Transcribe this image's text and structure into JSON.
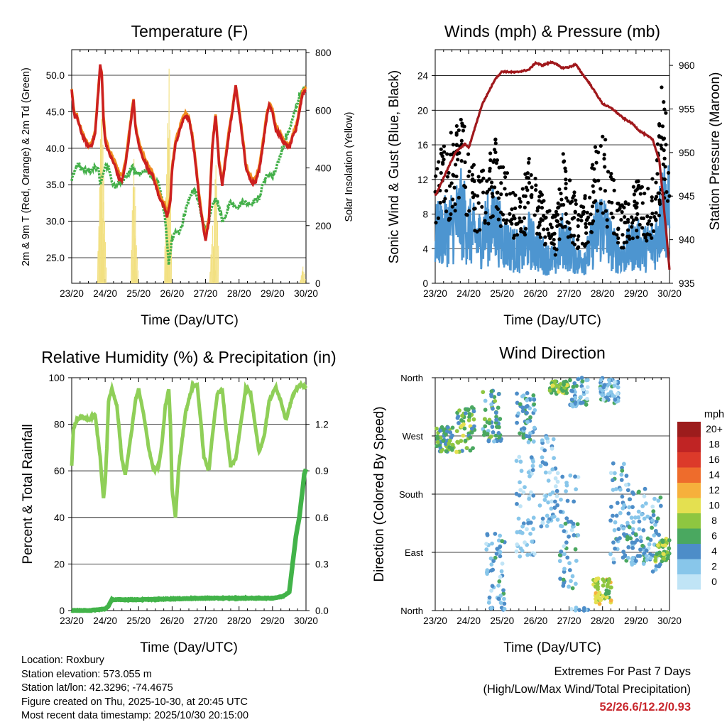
{
  "time_ticks": [
    "23/20",
    "24/20",
    "25/20",
    "26/20",
    "27/20",
    "28/20",
    "29/20",
    "30/20"
  ],
  "xlabel": "Time (Day/UTC)",
  "colors": {
    "temp2m": "#cc2020",
    "temp9m": "#f08c1e",
    "dewpoint": "#44b04a",
    "solar": "#f2e080",
    "gust": "#000000",
    "wind": "#4d95d0",
    "pressure": "#a0181c",
    "rh": "#8fcf58",
    "precip": "#42b349",
    "extremes": "#c8262c"
  },
  "chart_data": [
    {
      "id": "temperature",
      "type": "line",
      "title": "Temperature (F)",
      "xlabel": "Time (Day/UTC)",
      "ylabel": "2m & 9m T (Red, Orange) & 2m Td (Green)",
      "y2label": "Solar Insolation (Yellow)",
      "x": [
        0,
        0.05,
        0.1,
        0.15,
        0.2,
        0.3,
        0.4,
        0.5,
        0.6,
        0.7,
        0.8,
        0.85,
        0.9,
        0.95,
        1.0,
        1.1,
        1.2,
        1.3,
        1.4,
        1.5,
        1.6,
        1.7,
        1.8,
        1.85,
        1.9,
        2.0,
        2.1,
        2.2,
        2.3,
        2.4,
        2.5,
        2.6,
        2.7,
        2.8,
        2.85,
        2.9,
        2.95,
        3.0,
        3.1,
        3.2,
        3.3,
        3.4,
        3.5,
        3.6,
        3.7,
        3.8,
        3.9,
        4.0,
        4.1,
        4.2,
        4.3,
        4.4,
        4.5,
        4.6,
        4.7,
        4.8,
        4.9,
        5.0,
        5.1,
        5.2,
        5.3,
        5.4,
        5.5,
        5.6,
        5.7,
        5.8,
        5.9,
        6.0,
        6.1,
        6.2,
        6.3,
        6.4,
        6.5,
        6.6,
        6.7,
        6.8,
        6.9,
        7.0
      ],
      "ylim": [
        21.5,
        53.5
      ],
      "yticks": [
        "25.0",
        "30.0",
        "35.0",
        "40.0",
        "45.0",
        "50.0"
      ],
      "y2lim": [
        0,
        810
      ],
      "y2ticks": [
        "0",
        "200",
        "400",
        "600",
        "800"
      ],
      "series": [
        {
          "name": "2m T",
          "color": "#cc2020",
          "values": [
            48,
            45.5,
            44,
            44.5,
            43.5,
            42,
            41,
            40.2,
            40.5,
            42,
            48,
            51.5,
            50,
            44,
            41,
            39.5,
            38.5,
            37.5,
            36,
            35.5,
            37.5,
            41,
            45,
            46.5,
            43,
            40.5,
            39,
            38,
            37,
            36.5,
            35,
            33.5,
            32.5,
            31.5,
            30.5,
            31.5,
            33,
            37,
            40.5,
            42,
            43.5,
            44.5,
            44,
            41.5,
            38,
            33.5,
            30,
            27.5,
            30,
            40,
            44.5,
            38,
            35,
            38.5,
            42,
            45,
            48.5,
            45,
            41.5,
            37.5,
            36,
            35.3,
            35.5,
            37,
            40,
            43.5,
            46,
            45,
            42.5,
            42,
            41,
            40.5,
            40,
            41.5,
            42.5,
            45,
            47.5,
            48
          ]
        },
        {
          "name": "9m T",
          "color": "#f08c1e",
          "values": [
            48.3,
            45.8,
            44.3,
            44.8,
            43.8,
            42.3,
            41.3,
            40.5,
            40.8,
            42.3,
            48.5,
            51,
            50.3,
            44.5,
            41.5,
            40,
            39,
            38.2,
            36.8,
            36.2,
            38,
            41.5,
            45.3,
            46.8,
            43.3,
            41,
            39.5,
            38.5,
            37.5,
            37,
            35.5,
            34,
            33,
            32,
            31,
            32,
            33.5,
            37.5,
            41,
            42.5,
            44,
            44.8,
            44.3,
            42,
            38.5,
            34,
            30.5,
            28,
            30.5,
            40.5,
            44.8,
            38.5,
            35.5,
            39,
            42.5,
            45.5,
            48.8,
            45.5,
            42,
            38,
            36.5,
            35.8,
            36,
            37.5,
            40.5,
            44,
            46.2,
            45.3,
            43,
            42.4,
            41.4,
            40.9,
            40.4,
            41.9,
            42.9,
            45.2,
            47.8,
            48.3
          ]
        },
        {
          "name": "2m Td",
          "color": "#44b04a",
          "values": [
            35.5,
            36.5,
            37,
            37.5,
            37.8,
            37,
            37,
            36.8,
            37,
            37.5,
            37,
            35,
            36,
            36.5,
            37.5,
            37.5,
            35.5,
            34.5,
            35.5,
            35.5,
            36,
            36.5,
            37.5,
            37,
            36.5,
            36.5,
            36.8,
            37,
            36.5,
            36,
            35.5,
            35,
            33,
            30,
            27,
            24,
            26,
            27.5,
            28.5,
            28.5,
            29.5,
            31.5,
            33,
            34,
            34,
            32.5,
            30,
            29,
            30,
            32,
            33,
            32,
            30,
            30.5,
            32.5,
            32.5,
            32,
            32,
            32.8,
            32.5,
            32.5,
            32.5,
            33,
            33,
            35,
            36,
            36.5,
            36,
            37,
            38.5,
            40,
            41.5,
            42.5,
            44,
            45.5,
            47,
            48,
            48.5
          ]
        },
        {
          "name": "Solar Insolation",
          "axis": "y2",
          "color": "#f2e080",
          "values": [
            0,
            0,
            0,
            0,
            0,
            0,
            0,
            0,
            0,
            0,
            0,
            500,
            800,
            300,
            0,
            0,
            0,
            0,
            0,
            0,
            0,
            0,
            0,
            550,
            220,
            0,
            0,
            0,
            0,
            0,
            0,
            0,
            0,
            0,
            600,
            780,
            0,
            0,
            0,
            0,
            0,
            0,
            0,
            0,
            0,
            0,
            0,
            0,
            0,
            220,
            580,
            0,
            0,
            0,
            0,
            0,
            0,
            0,
            0,
            0,
            0,
            0,
            0,
            0,
            0,
            0,
            0,
            0,
            0,
            0,
            0,
            0,
            0,
            0,
            0,
            0,
            70,
            0
          ]
        }
      ]
    },
    {
      "id": "winds",
      "type": "scatter",
      "title": "Winds (mph) & Pressure (mb)",
      "xlabel": "Time (Day/UTC)",
      "ylabel": "Sonic Wind & Gust (Blue, Black)",
      "y2label": "Station Pressure (Maroon)",
      "ylim": [
        0,
        27
      ],
      "yticks": [
        "0",
        "4",
        "8",
        "12",
        "16",
        "20",
        "24"
      ],
      "y2lim": [
        935,
        961.8
      ],
      "y2ticks": [
        "935",
        "940",
        "945",
        "950",
        "955",
        "960"
      ],
      "wind_profile_x": [
        0,
        0.3,
        0.6,
        0.8,
        1.0,
        1.3,
        1.5,
        1.8,
        2.0,
        2.3,
        2.6,
        2.8,
        3.0,
        3.3,
        3.6,
        3.8,
        4.0,
        4.3,
        4.6,
        4.8,
        5.0,
        5.3,
        5.6,
        5.8,
        6.0,
        6.3,
        6.6,
        6.8,
        7.0
      ],
      "wind_profile_mean": [
        5.5,
        6,
        7,
        8,
        6,
        5,
        6,
        7,
        5,
        4,
        3.5,
        5,
        4,
        3,
        2.5,
        5,
        4,
        2.5,
        3.5,
        6,
        7,
        4,
        3,
        4,
        4.5,
        4,
        5,
        9,
        8
      ],
      "gust_profile_mean": [
        10,
        11,
        12,
        13,
        10,
        8,
        9,
        11,
        9,
        8,
        7,
        10,
        8,
        6,
        5,
        10,
        8,
        6,
        7,
        11,
        12,
        8,
        6,
        7,
        8,
        7,
        9,
        16,
        13
      ],
      "series": [
        {
          "name": "Station Pressure",
          "axis": "y2",
          "color": "#a0181c",
          "x": [
            0,
            0.3,
            0.6,
            0.9,
            1.0,
            1.2,
            1.4,
            1.6,
            1.8,
            2.0,
            2.4,
            2.8,
            3.0,
            3.2,
            3.5,
            3.8,
            4.0,
            4.2,
            4.4,
            4.6,
            4.8,
            5.0,
            5.3,
            5.6,
            5.9,
            6.1,
            6.3,
            6.5,
            6.7,
            6.8,
            6.9,
            7.0
          ],
          "values": [
            945,
            947.5,
            950,
            951,
            950.5,
            953,
            955.5,
            957,
            958.5,
            959.3,
            959.2,
            959.5,
            960.3,
            960,
            960.4,
            959.7,
            959.8,
            960.1,
            959,
            958,
            956.8,
            955.6,
            955,
            954,
            953.3,
            952.5,
            952,
            951.5,
            949,
            945,
            941,
            936.5
          ]
        }
      ]
    },
    {
      "id": "humidity",
      "type": "line",
      "title": "Relative Humidity (%) & Precipitation (in)",
      "xlabel": "Time (Day/UTC)",
      "ylabel": "Percent & Total Rainfall",
      "ylim": [
        0,
        100
      ],
      "yticks": [
        "0",
        "20",
        "40",
        "60",
        "80",
        "100"
      ],
      "y2lim": [
        0,
        1.5
      ],
      "y2ticks": [
        "0.0",
        "0.3",
        "0.6",
        "0.9",
        "1.2"
      ],
      "series": [
        {
          "name": "Relative Humidity",
          "color": "#8fcf58",
          "x": [
            0,
            0.05,
            0.15,
            0.3,
            0.5,
            0.7,
            0.85,
            0.95,
            1.0,
            1.05,
            1.1,
            1.2,
            1.35,
            1.5,
            1.6,
            1.8,
            1.9,
            2.0,
            2.15,
            2.3,
            2.45,
            2.6,
            2.7,
            2.8,
            2.9,
            2.95,
            3.0,
            3.1,
            3.2,
            3.4,
            3.6,
            3.75,
            3.85,
            3.95,
            4.1,
            4.2,
            4.35,
            4.5,
            4.6,
            4.75,
            4.9,
            5.1,
            5.2,
            5.35,
            5.5,
            5.6,
            5.75,
            5.9,
            6.1,
            6.25,
            6.4,
            6.6,
            6.8,
            7.0
          ],
          "values": [
            62,
            78,
            82,
            83,
            82,
            84,
            66,
            48,
            55,
            70,
            90,
            95,
            88,
            65,
            58,
            78,
            90,
            95,
            84,
            70,
            60,
            62,
            72,
            88,
            95,
            80,
            52,
            40,
            62,
            85,
            96,
            97,
            82,
            66,
            60,
            75,
            93,
            95,
            80,
            62,
            65,
            85,
            96,
            93,
            78,
            68,
            75,
            90,
            96,
            90,
            82,
            92,
            97,
            96
          ]
        },
        {
          "name": "Total Precipitation",
          "axis": "y2",
          "color": "#42b349",
          "x": [
            0,
            0.5,
            1.0,
            1.1,
            1.2,
            2.0,
            3.0,
            4.0,
            5.0,
            6.0,
            6.3,
            6.5,
            6.6,
            6.7,
            6.8,
            6.9,
            6.95,
            7.0
          ],
          "values": [
            0,
            0,
            0.01,
            0.03,
            0.07,
            0.07,
            0.075,
            0.08,
            0.08,
            0.08,
            0.09,
            0.12,
            0.3,
            0.48,
            0.6,
            0.78,
            0.88,
            0.91
          ]
        }
      ]
    },
    {
      "id": "direction",
      "type": "scatter",
      "title": "Wind Direction",
      "xlabel": "Time (Day/UTC)",
      "ylabel": "Direction (Colored By Speed)",
      "ylim": [
        0,
        360
      ],
      "yticks": [
        "North",
        "East",
        "South",
        "West",
        "North"
      ],
      "legend_title": "mph",
      "legend_labels": [
        "0",
        "2",
        "4",
        "6",
        "8",
        "10",
        "12",
        "14",
        "16",
        "18",
        "20+"
      ],
      "legend_colors": [
        "#c0e4f6",
        "#88c6ea",
        "#4d8dc8",
        "#4aa860",
        "#8ec640",
        "#e4e050",
        "#f6b03c",
        "#ee6c2c",
        "#dc3a2a",
        "#c02424",
        "#9c1c1c"
      ],
      "clusters": [
        {
          "x": 0.3,
          "deg": 265,
          "spread": 20,
          "spd": 6
        },
        {
          "x": 0.9,
          "deg": 280,
          "spread": 35,
          "spd": 7
        },
        {
          "x": 1.7,
          "deg": 300,
          "spread": 40,
          "spd": 5
        },
        {
          "x": 2.7,
          "deg": 300,
          "spread": 40,
          "spd": 4
        },
        {
          "x": 1.8,
          "deg": 60,
          "spread": 60,
          "spd": 3
        },
        {
          "x": 2.7,
          "deg": 160,
          "spread": 80,
          "spd": 2
        },
        {
          "x": 3.4,
          "deg": 200,
          "spread": 70,
          "spd": 2
        },
        {
          "x": 4.0,
          "deg": 120,
          "spread": 90,
          "spd": 3
        },
        {
          "x": 3.7,
          "deg": 345,
          "spread": 10,
          "spd": 7
        },
        {
          "x": 4.3,
          "deg": 340,
          "spread": 25,
          "spd": 3
        },
        {
          "x": 5.0,
          "deg": 30,
          "spread": 20,
          "spd": 9
        },
        {
          "x": 5.2,
          "deg": 340,
          "spread": 20,
          "spd": 3
        },
        {
          "x": 5.5,
          "deg": 150,
          "spread": 80,
          "spd": 3
        },
        {
          "x": 6.0,
          "deg": 130,
          "spread": 60,
          "spd": 4
        },
        {
          "x": 6.5,
          "deg": 120,
          "spread": 60,
          "spd": 3
        },
        {
          "x": 6.85,
          "deg": 95,
          "spread": 20,
          "spd": 8
        }
      ]
    }
  ],
  "footer": {
    "location": "Location: Roxbury",
    "elevation": "Station elevation: 573.055 m",
    "latlon": "Station lat/lon: 42.3296; -74.4675",
    "created": "Figure created on Thu, 2025-10-30, at 20:45 UTC",
    "recent": "Most recent data timestamp: 2025/10/30 20:15:00"
  },
  "extremes": {
    "title": "Extremes For Past 7 Days",
    "subtitle": "(High/Low/Max Wind/Total Precipitation)",
    "values": "52/26.6/12.2/0.93"
  }
}
